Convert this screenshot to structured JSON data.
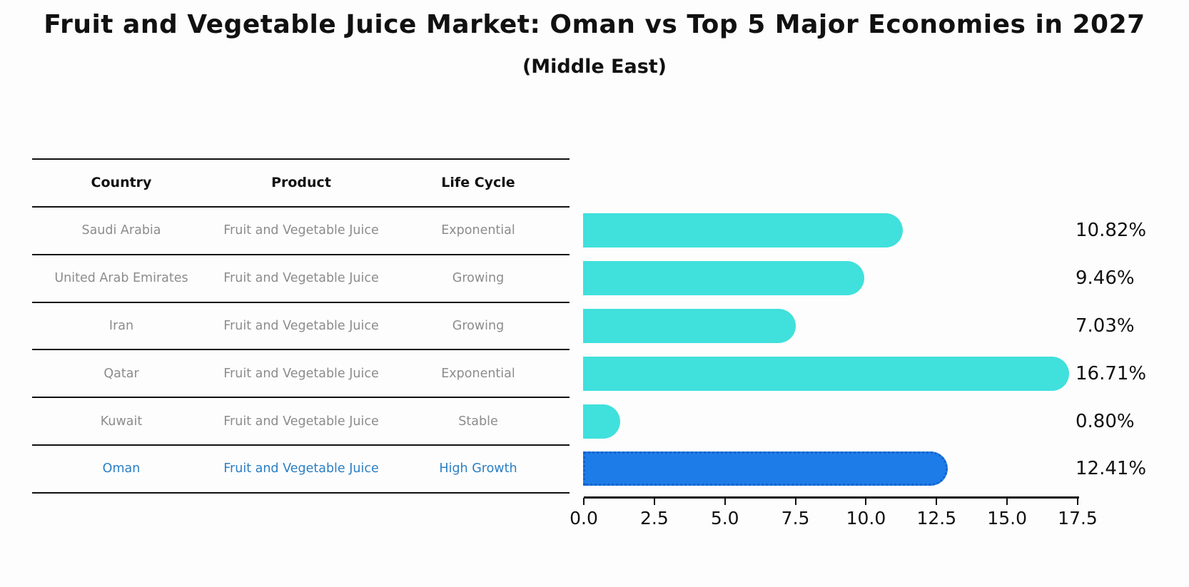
{
  "title": "Fruit and Vegetable Juice Market: Oman vs Top 5 Major Economies in 2027",
  "subtitle": "(Middle East)",
  "table": {
    "headers": [
      "Country",
      "Product",
      "Life Cycle"
    ],
    "rows": [
      {
        "country": "Saudi Arabia",
        "product": "Fruit and Vegetable Juice",
        "life_cycle": "Exponential",
        "highlighted": false
      },
      {
        "country": "United Arab Emirates",
        "product": "Fruit and Vegetable Juice",
        "life_cycle": "Growing",
        "highlighted": false
      },
      {
        "country": "Iran",
        "product": "Fruit and Vegetable Juice",
        "life_cycle": "Growing",
        "highlighted": false
      },
      {
        "country": "Qatar",
        "product": "Fruit and Vegetable Juice",
        "life_cycle": "Exponential",
        "highlighted": false
      },
      {
        "country": "Kuwait",
        "product": "Fruit and Vegetable Juice",
        "life_cycle": "Stable",
        "highlighted": false
      },
      {
        "country": "Oman",
        "product": "Fruit and Vegetable Juice",
        "life_cycle": "High Growth",
        "highlighted": true
      }
    ]
  },
  "chart_data": {
    "type": "bar",
    "orientation": "horizontal",
    "title": "Fruit and Vegetable Juice Market: Oman vs Top 5 Major Economies in 2027",
    "subtitle": "(Middle East)",
    "categories": [
      "Saudi Arabia",
      "United Arab Emirates",
      "Iran",
      "Qatar",
      "Kuwait",
      "Oman"
    ],
    "values": [
      10.82,
      9.46,
      7.03,
      16.71,
      0.8,
      12.41
    ],
    "value_labels": [
      "10.82%",
      "9.46%",
      "7.03%",
      "16.71%",
      "0.80%",
      "12.41%"
    ],
    "unit": "percent",
    "xlim": [
      0,
      17.5
    ],
    "x_ticks": [
      0.0,
      2.5,
      5.0,
      7.5,
      10.0,
      12.5,
      15.0,
      17.5
    ],
    "x_tick_labels": [
      "0.0",
      "2.5",
      "5.0",
      "7.5",
      "10.0",
      "12.5",
      "15.0",
      "17.5"
    ],
    "grid": false,
    "legend": false,
    "highlight_index": 5,
    "colors": {
      "bar": "#40e0dc",
      "highlight_bar": "#1e7ce8",
      "highlight_bar_border": "#1462cc",
      "highlight_row_text": "#2b7fc4",
      "row_text": "#8c8c8c",
      "text": "#111111",
      "background": "#fdfdfd"
    }
  }
}
